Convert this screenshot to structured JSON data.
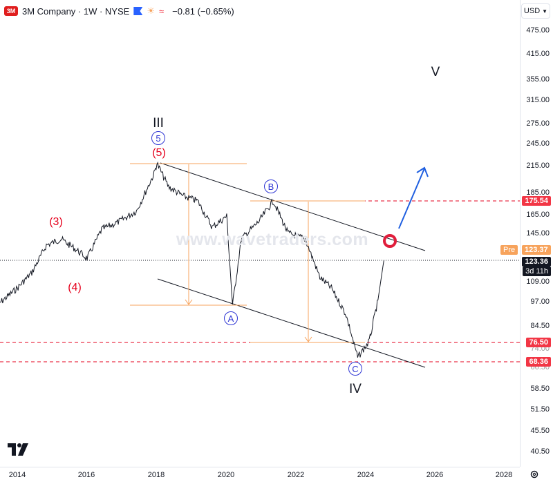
{
  "header": {
    "logo_text": "3M",
    "title": "3M Company · 1W · NYSE",
    "change": "−0.81 (−0.65%)",
    "icons": [
      "flag-icon",
      "sun-icon",
      "wave-icon"
    ]
  },
  "currency": {
    "label": "USD",
    "icon": "chevron-down-icon"
  },
  "colors": {
    "price_line": "#131722",
    "red_level": "#e5001c",
    "channel": "#131722",
    "fib": "#f7a35c",
    "arrow": "#1f5fe0",
    "circle": "#e01e3c"
  },
  "price_axis": {
    "ticks": [
      "475.00",
      "415.00",
      "355.00",
      "315.00",
      "275.00",
      "245.00",
      "215.00",
      "185.00",
      "165.00",
      "145.00",
      "109.00",
      "97.00",
      "84.50",
      "74.00",
      "66.50",
      "58.50",
      "51.50",
      "45.50",
      "40.50"
    ],
    "tags": {
      "resistance": "175.54",
      "pre_label": "Pre",
      "pre_value": "123.37",
      "last_price": "123.36",
      "countdown": "3d 11h",
      "support_1": "76.50",
      "support_2": "68.36"
    }
  },
  "time_axis": {
    "ticks": [
      "2014",
      "2016",
      "2018",
      "2020",
      "2022",
      "2024",
      "2026",
      "2028"
    ]
  },
  "labels": {
    "wave_III": "III",
    "wave_IV": "IV",
    "wave_V": "V",
    "wave_5_circled": "5",
    "wave_5_red": "(5)",
    "wave_3_red": "(3)",
    "wave_4_red": "(4)",
    "wave_A": "A",
    "wave_B": "B",
    "wave_C": "C"
  },
  "watermark": "www.wavetraders.com",
  "chart_data": {
    "type": "line",
    "title": "3M Company · 1W · NYSE",
    "series": [
      {
        "name": "3M Company",
        "x": [
          "2013-06",
          "2014-01",
          "2014-06",
          "2014-11",
          "2015-04",
          "2015-09",
          "2016-01",
          "2016-06",
          "2016-12",
          "2017-06",
          "2017-12",
          "2018-01",
          "2018-05",
          "2018-10",
          "2019-03",
          "2019-08",
          "2020-01",
          "2020-03",
          "2020-06",
          "2020-12",
          "2021-05",
          "2021-10",
          "2022-04",
          "2022-09",
          "2023-01",
          "2023-06",
          "2023-10",
          "2024-02",
          "2024-05",
          "2024-07"
        ],
        "values": [
          95,
          105,
          115,
          135,
          140,
          132,
          125,
          148,
          155,
          165,
          205,
          218,
          190,
          180,
          175,
          150,
          160,
          95,
          140,
          155,
          175,
          145,
          140,
          112,
          105,
          90,
          70,
          77,
          98,
          123.36
        ]
      }
    ],
    "levels": [
      175.54,
      76.5,
      68.36
    ],
    "last_price": 123.36,
    "yscale": "log"
  }
}
